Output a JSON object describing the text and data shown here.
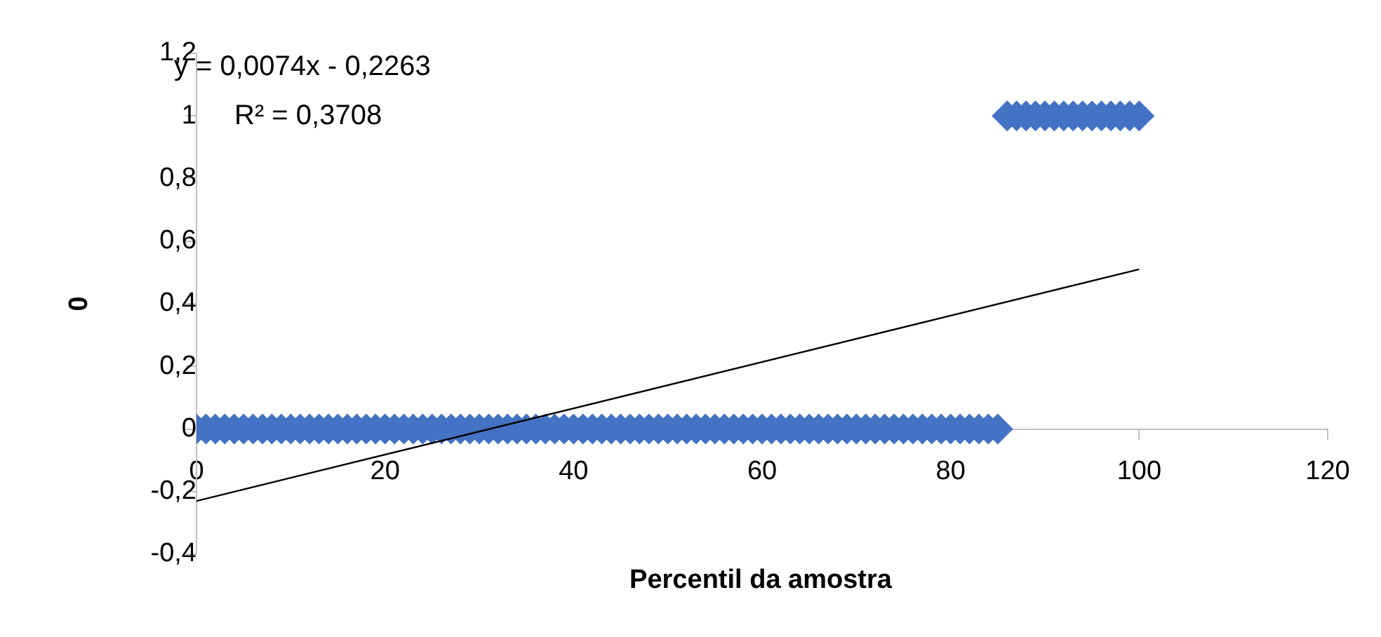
{
  "chart_data": {
    "type": "scatter",
    "xlabel": "Percentil da amostra",
    "ylabel": "0",
    "annotations": [
      "y = 0,0074x - 0,2263",
      "R² = 0,3708"
    ],
    "xlim": [
      0,
      120
    ],
    "xticks": [
      0,
      20,
      40,
      60,
      80,
      100,
      120
    ],
    "ylim": [
      -0.4,
      1.2
    ],
    "yticks": [
      {
        "value": -0.4,
        "label": "-0,4"
      },
      {
        "value": -0.2,
        "label": "-0,2"
      },
      0,
      {
        "value": 0.2,
        "label": "0,2"
      },
      {
        "value": 0.4,
        "label": "0,4"
      },
      {
        "value": 0.6,
        "label": "0,6"
      },
      {
        "value": 0.8,
        "label": "0,8"
      },
      1,
      {
        "value": 1.2,
        "label": "1,2"
      }
    ],
    "grid": false,
    "legend": false,
    "marker": "diamond",
    "series": [
      {
        "color": "#4472c4",
        "x": [
          0,
          1,
          2,
          3,
          4,
          5,
          6,
          7,
          8,
          9,
          10,
          11,
          12,
          13,
          14,
          15,
          16,
          17,
          18,
          19,
          20,
          21,
          22,
          23,
          24,
          25,
          26,
          27,
          28,
          29,
          30,
          31,
          32,
          33,
          34,
          35,
          36,
          37,
          38,
          39,
          40,
          41,
          42,
          43,
          44,
          45,
          46,
          47,
          48,
          49,
          50,
          51,
          52,
          53,
          54,
          55,
          56,
          57,
          58,
          59,
          60,
          61,
          62,
          63,
          64,
          65,
          66,
          67,
          68,
          69,
          70,
          71,
          72,
          73,
          74,
          75,
          76,
          77,
          78,
          79,
          80,
          81,
          82,
          83,
          84,
          85,
          86,
          87,
          88,
          89,
          90,
          91,
          92,
          93,
          94,
          95,
          96,
          97,
          98,
          99,
          100
        ],
        "values": [
          0,
          0,
          0,
          0,
          0,
          0,
          0,
          0,
          0,
          0,
          0,
          0,
          0,
          0,
          0,
          0,
          0,
          0,
          0,
          0,
          0,
          0,
          0,
          0,
          0,
          0,
          0,
          0,
          0,
          0,
          0,
          0,
          0,
          0,
          0,
          0,
          0,
          0,
          0,
          0,
          0,
          0,
          0,
          0,
          0,
          0,
          0,
          0,
          0,
          0,
          0,
          0,
          0,
          0,
          0,
          0,
          0,
          0,
          0,
          0,
          0,
          0,
          0,
          0,
          0,
          0,
          0,
          0,
          0,
          0,
          0,
          0,
          0,
          0,
          0,
          0,
          0,
          0,
          0,
          0,
          0,
          0,
          0,
          0,
          0,
          0,
          1,
          1,
          1,
          1,
          1,
          1,
          1,
          1,
          1,
          1,
          1,
          1,
          1,
          1,
          1
        ]
      },
      {
        "type": "line",
        "color": "#000000",
        "marker": "none",
        "x": [
          0,
          100
        ],
        "values": [
          -0.23,
          0.51
        ]
      }
    ]
  }
}
